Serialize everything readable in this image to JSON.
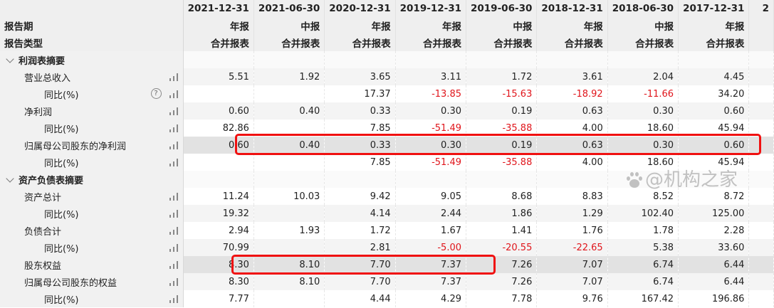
{
  "header": {
    "row_labels": [
      "报告期",
      "报告类型"
    ],
    "columns": [
      {
        "date": "2021-12-31",
        "period": "年报",
        "type": "合并报表"
      },
      {
        "date": "2021-06-30",
        "period": "中报",
        "type": "合并报表"
      },
      {
        "date": "2020-12-31",
        "period": "年报",
        "type": "合并报表"
      },
      {
        "date": "2019-12-31",
        "period": "年报",
        "type": "合并报表"
      },
      {
        "date": "2019-06-30",
        "period": "中报",
        "type": "合并报表"
      },
      {
        "date": "2018-12-31",
        "period": "年报",
        "type": "合并报表"
      },
      {
        "date": "2018-06-30",
        "period": "中报",
        "type": "合并报表"
      },
      {
        "date": "2017-12-31",
        "period": "年报",
        "type": "合并报表"
      },
      {
        "date": "2",
        "period": "",
        "type": ""
      }
    ]
  },
  "rows": [
    {
      "kind": "sec",
      "label": "利润表摘要",
      "values": []
    },
    {
      "kind": "l1",
      "label": "营业总收入",
      "values": [
        "5.51",
        "1.92",
        "3.65",
        "3.11",
        "1.72",
        "3.61",
        "2.04",
        "4.45",
        ""
      ]
    },
    {
      "kind": "l2",
      "label": "同比(%)",
      "help": "?",
      "values": [
        "",
        "",
        "17.37",
        "-13.85",
        "-15.63",
        "-18.92",
        "-11.66",
        "34.20",
        ""
      ]
    },
    {
      "kind": "l1",
      "label": "净利润",
      "values": [
        "0.60",
        "0.40",
        "0.33",
        "0.30",
        "0.19",
        "0.63",
        "0.30",
        "0.60",
        ""
      ]
    },
    {
      "kind": "l2",
      "label": "同比(%)",
      "values": [
        "82.86",
        "",
        "7.85",
        "-51.49",
        "-35.88",
        "4.00",
        "18.60",
        "45.94",
        ""
      ]
    },
    {
      "kind": "l1",
      "label": "归属母公司股东的净利润",
      "values": [
        "0.60",
        "0.40",
        "0.33",
        "0.30",
        "0.19",
        "0.63",
        "0.30",
        "0.60",
        ""
      ]
    },
    {
      "kind": "l2",
      "label": "同比(%)",
      "values": [
        "",
        "",
        "7.85",
        "-51.49",
        "-35.88",
        "4.00",
        "18.60",
        "45.94",
        ""
      ]
    },
    {
      "kind": "sec",
      "label": "资产负债表摘要",
      "values": []
    },
    {
      "kind": "l1",
      "label": "资产总计",
      "values": [
        "11.24",
        "10.03",
        "9.42",
        "9.05",
        "8.68",
        "8.83",
        "8.52",
        "8.72",
        ""
      ]
    },
    {
      "kind": "l2",
      "label": "同比(%)",
      "values": [
        "19.32",
        "",
        "4.14",
        "2.44",
        "1.86",
        "1.29",
        "102.40",
        "125.00",
        ""
      ]
    },
    {
      "kind": "l1",
      "label": "负债合计",
      "values": [
        "2.94",
        "1.93",
        "1.72",
        "1.67",
        "1.41",
        "1.76",
        "1.78",
        "2.28",
        ""
      ]
    },
    {
      "kind": "l2",
      "label": "同比(%)",
      "values": [
        "70.99",
        "",
        "2.81",
        "-5.00",
        "-20.55",
        "-22.65",
        "5.38",
        "33.60",
        ""
      ]
    },
    {
      "kind": "l1",
      "label": "股东权益",
      "values": [
        "8.30",
        "8.10",
        "7.70",
        "7.37",
        "7.26",
        "7.07",
        "6.74",
        "6.44",
        ""
      ]
    },
    {
      "kind": "l1",
      "label": "归属母公司股东的权益",
      "values": [
        "8.30",
        "8.10",
        "7.70",
        "7.37",
        "7.26",
        "7.07",
        "6.74",
        "6.44",
        ""
      ]
    },
    {
      "kind": "l2",
      "label": "同比(%)",
      "values": [
        "7.77",
        "",
        "4.44",
        "4.29",
        "7.78",
        "9.76",
        "167.42",
        "196.86",
        ""
      ]
    }
  ],
  "watermark": "@机构之家",
  "colors": {
    "negative": "#e0151b",
    "highlight_box": "#f01010"
  }
}
